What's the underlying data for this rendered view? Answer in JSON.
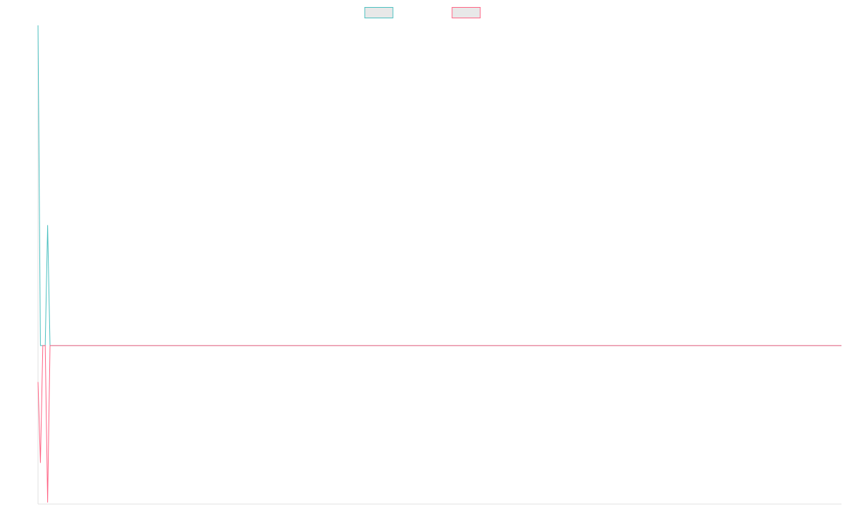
{
  "chart_data": {
    "type": "line",
    "x": [
      0,
      1,
      2,
      3,
      4,
      5,
      335
    ],
    "xlim": [
      0,
      335
    ],
    "ylim": [
      -1,
      2.02
    ],
    "series": [
      {
        "color": "#4bc0c0",
        "values": [
          2.02,
          0,
          0,
          0,
          0.76,
          0,
          0
        ]
      },
      {
        "color": "#ff6384",
        "values": [
          -0.23,
          -0.74,
          0,
          0,
          -0.99,
          0,
          0
        ]
      }
    ],
    "legend": "top"
  }
}
